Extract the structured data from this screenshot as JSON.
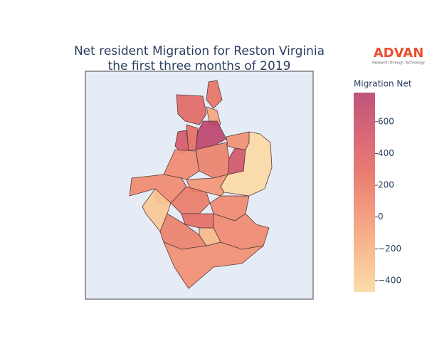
{
  "chart_data": {
    "type": "choropleth",
    "title": [
      "Net resident Migration for Reston Virginia",
      "the first three months of 2019"
    ],
    "colorbar_title": "Migration Net",
    "logo": {
      "text": "ADVAN",
      "tagline": "Research through Technology",
      "color": "#e8502f"
    },
    "values": [
      250,
      350,
      -100,
      780,
      500,
      300,
      -470,
      550,
      50,
      150,
      100,
      100,
      -350,
      0,
      200,
      100,
      300,
      150,
      100,
      50,
      -250
    ],
    "zlim": [
      -472,
      783
    ],
    "zticks": [
      {
        "value": -400,
        "label": "−400"
      },
      {
        "value": -200,
        "label": "−200"
      },
      0,
      200,
      400,
      600
    ],
    "colorscale": [
      "#fcd9a4",
      "#f7b585",
      "#f29172",
      "#e66e62",
      "#d35667",
      "#b9416c"
    ],
    "background": "#e5ecf6"
  }
}
